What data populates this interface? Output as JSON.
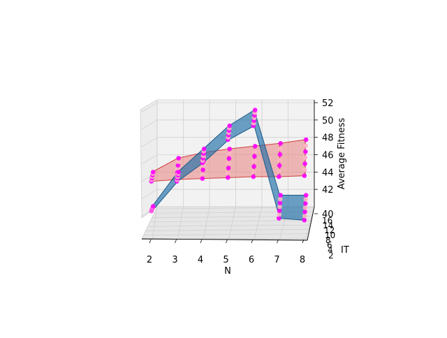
{
  "chart_data": {
    "type": "3d-surface-scatter",
    "title": "",
    "xlabel": "N",
    "ylabel": "IT",
    "zlabel": "Average Fitness",
    "x_ticks": [
      "2",
      "3",
      "4",
      "5",
      "6",
      "7",
      "8"
    ],
    "y_ticks": [
      "2",
      "4",
      "6",
      "8",
      "10",
      "12",
      "14",
      "16"
    ],
    "z_ticks": [
      "40",
      "42",
      "44",
      "46",
      "48",
      "50",
      "52"
    ],
    "xlim": [
      2,
      8
    ],
    "ylim": [
      2,
      16
    ],
    "zlim": [
      40,
      52
    ],
    "grid": true,
    "series": [
      {
        "color": "#e8837f",
        "points": [
          {
            "N": 2,
            "lo": 43.5,
            "hi": 44.5
          },
          {
            "N": 3,
            "lo": 43.7,
            "hi": 46.0
          },
          {
            "N": 4,
            "lo": 43.8,
            "hi": 46.6
          },
          {
            "N": 5,
            "lo": 43.9,
            "hi": 47.0
          },
          {
            "N": 6,
            "lo": 44.0,
            "hi": 47.3
          },
          {
            "N": 7,
            "lo": 44.0,
            "hi": 47.6
          },
          {
            "N": 8,
            "lo": 44.1,
            "hi": 48.0
          }
        ]
      },
      {
        "color": "#1f6fa8",
        "points": [
          {
            "N": 2,
            "lo": 40.3,
            "hi": 40.8
          },
          {
            "N": 3,
            "lo": 43.5,
            "hi": 44.5
          },
          {
            "N": 4,
            "lo": 45.5,
            "hi": 47.0
          },
          {
            "N": 5,
            "lo": 48.0,
            "hi": 49.5
          },
          {
            "N": 6,
            "lo": 49.5,
            "hi": 51.2
          },
          {
            "N": 7,
            "lo": 39.5,
            "hi": 42.0
          },
          {
            "N": 8,
            "lo": 39.3,
            "hi": 42.0
          }
        ]
      }
    ],
    "marker_colors": [
      "#ff00ff",
      "#ffb6c8"
    ]
  }
}
